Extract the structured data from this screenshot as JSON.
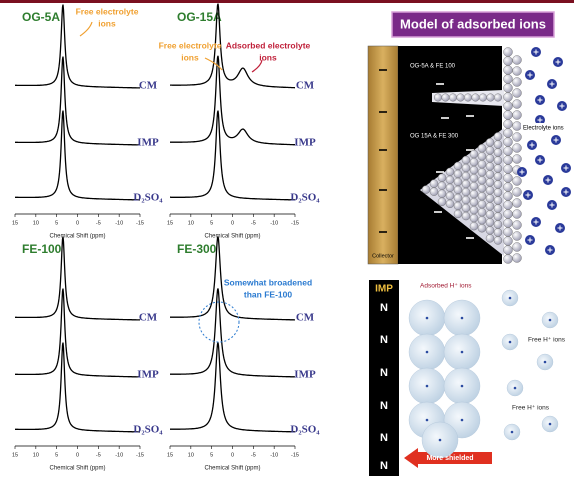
{
  "header": {
    "title": "Model of adsorbed ions"
  },
  "axis": {
    "ticks": [
      "15",
      "10",
      "5",
      "0",
      "-5",
      "-10",
      "-15"
    ],
    "label": "Chemical Shift (ppm)"
  },
  "panels": [
    {
      "title": "OG-5A",
      "traces": [
        "CM",
        "IMP",
        "D₂SO₄"
      ],
      "annotations": [
        [
          "Free electrolyte",
          "ions"
        ]
      ]
    },
    {
      "title": "OG-15A",
      "traces": [
        "CM",
        "IMP",
        "D₂SO₄"
      ],
      "annotations": [
        [
          "Free electrolyte",
          "ions"
        ],
        [
          "Adsorbed electrolyte",
          "ions"
        ]
      ]
    },
    {
      "title": "FE-100",
      "traces": [
        "CM",
        "IMP",
        "D₂SO₄"
      ],
      "annotations": []
    },
    {
      "title": "FE-300",
      "traces": [
        "CM",
        "IMP",
        "D₂SO₄"
      ],
      "annotations": [
        [
          "Somewhat  broadened",
          "than FE-100"
        ]
      ]
    }
  ],
  "pore_diagram": {
    "collector": "Collector",
    "pore_labels": [
      "OG-5A & FE 100",
      "OG 15A & FE 300"
    ],
    "ions_label": "Electrolyte ions"
  },
  "shielding_diagram": {
    "column_title": "IMP",
    "column_items": [
      "N",
      "N",
      "N",
      "N",
      "N",
      "N"
    ],
    "adsorbed_label": "Adsorbed H⁺ ions",
    "free_labels": [
      "Free H⁺ ions",
      "Free H⁺ ions"
    ],
    "arrow_label": "More shielded"
  }
}
